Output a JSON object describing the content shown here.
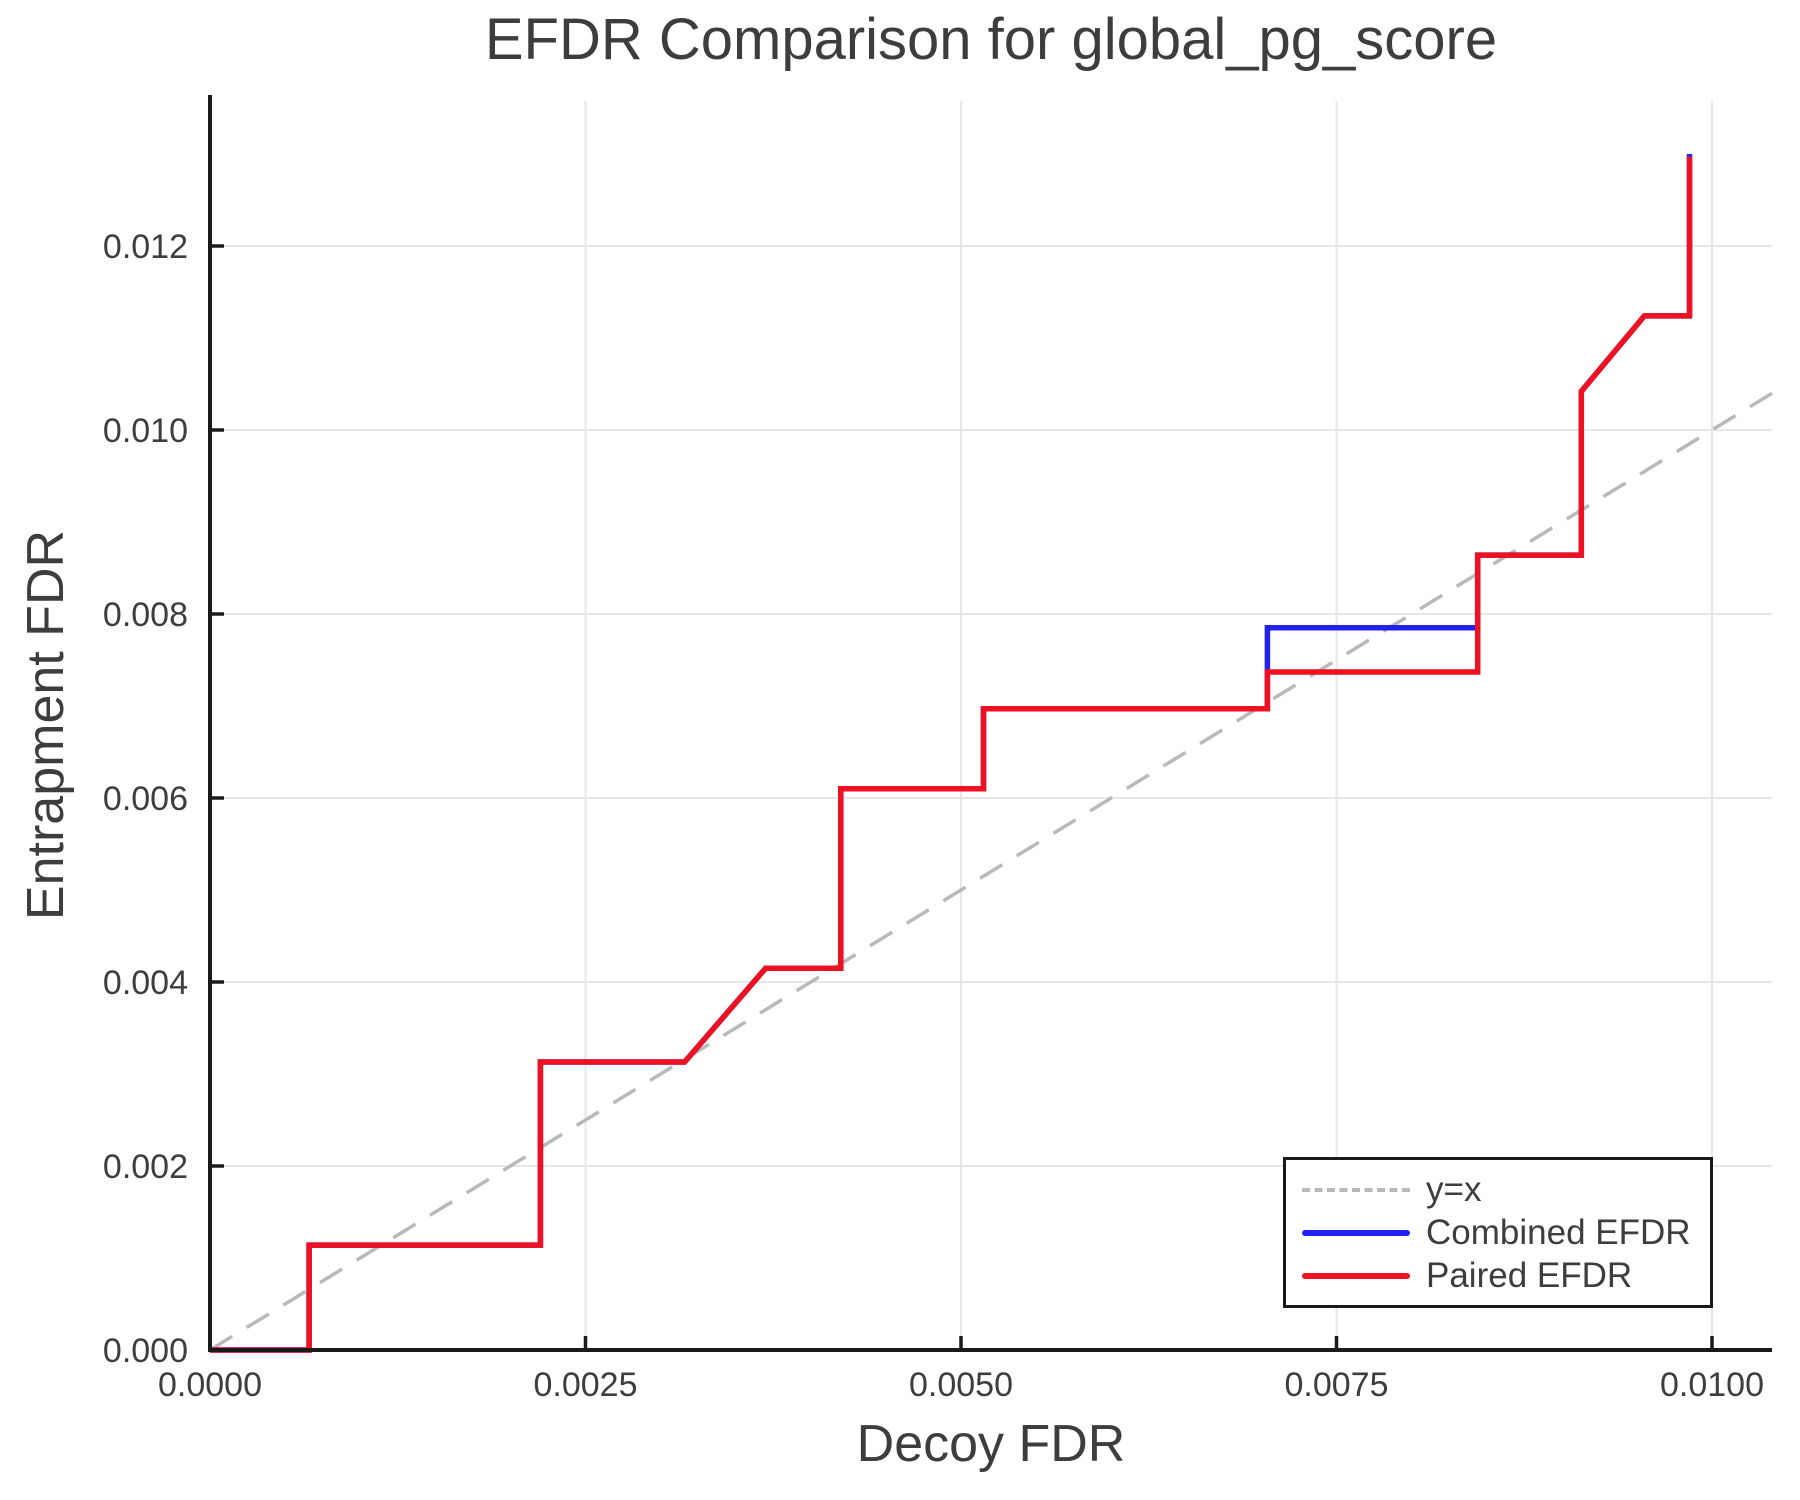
{
  "chart_data": {
    "type": "line",
    "title": "EFDR Comparison for global_pg_score",
    "xlabel": "Decoy FDR",
    "ylabel": "Entrapment FDR",
    "xlim": [
      0,
      0.0104
    ],
    "ylim": [
      0,
      0.01358
    ],
    "grid": true,
    "legend_position": "lower right",
    "x_ticks": [
      0.0,
      0.0025,
      0.005,
      0.0075,
      0.01
    ],
    "x_tick_labels": [
      "0.0000",
      "0.0025",
      "0.0050",
      "0.0075",
      "0.0100"
    ],
    "y_ticks": [
      0.0,
      0.002,
      0.004,
      0.006,
      0.008,
      0.01,
      0.012
    ],
    "y_tick_labels": [
      "0.000",
      "0.002",
      "0.004",
      "0.006",
      "0.008",
      "0.010",
      "0.012"
    ],
    "series": [
      {
        "name": "y=x",
        "style": "dashed",
        "color": "#b9b9b9",
        "points": [
          [
            0.0,
            0.0
          ],
          [
            0.0104,
            0.0104
          ]
        ]
      },
      {
        "name": "Combined EFDR",
        "style": "solid",
        "color": "#2222ee",
        "points": [
          [
            0.0,
            0.0
          ],
          [
            0.00066,
            0.0
          ],
          [
            0.00066,
            0.00114
          ],
          [
            0.0022,
            0.00114
          ],
          [
            0.0022,
            0.00313
          ],
          [
            0.00316,
            0.00313
          ],
          [
            0.0037,
            0.00415
          ],
          [
            0.0042,
            0.00415
          ],
          [
            0.0042,
            0.0061
          ],
          [
            0.00515,
            0.0061
          ],
          [
            0.00515,
            0.00697
          ],
          [
            0.00704,
            0.00697
          ],
          [
            0.00704,
            0.00785
          ],
          [
            0.00844,
            0.00785
          ],
          [
            0.00844,
            0.00864
          ],
          [
            0.00913,
            0.00864
          ],
          [
            0.00913,
            0.01042
          ],
          [
            0.00955,
            0.01124
          ],
          [
            0.00985,
            0.01124
          ],
          [
            0.00985,
            0.013
          ]
        ]
      },
      {
        "name": "Paired EFDR",
        "style": "solid",
        "color": "#ee1122",
        "points": [
          [
            0.0,
            0.0
          ],
          [
            0.00066,
            0.0
          ],
          [
            0.00066,
            0.00114
          ],
          [
            0.0022,
            0.00114
          ],
          [
            0.0022,
            0.00313
          ],
          [
            0.00316,
            0.00313
          ],
          [
            0.0037,
            0.00415
          ],
          [
            0.0042,
            0.00415
          ],
          [
            0.0042,
            0.0061
          ],
          [
            0.00515,
            0.0061
          ],
          [
            0.00515,
            0.00697
          ],
          [
            0.00704,
            0.00697
          ],
          [
            0.00704,
            0.00737
          ],
          [
            0.00844,
            0.00737
          ],
          [
            0.00844,
            0.00864
          ],
          [
            0.00913,
            0.00864
          ],
          [
            0.00913,
            0.01042
          ],
          [
            0.00955,
            0.01124
          ],
          [
            0.00985,
            0.01124
          ],
          [
            0.00985,
            0.01297
          ]
        ]
      }
    ],
    "legend_entries": [
      "y=x",
      "Combined EFDR",
      "Paired EFDR"
    ]
  },
  "style_colors": {
    "grid": "#e7e7e7",
    "spine": "#1a1a1a",
    "text": "#3d3d3d"
  }
}
